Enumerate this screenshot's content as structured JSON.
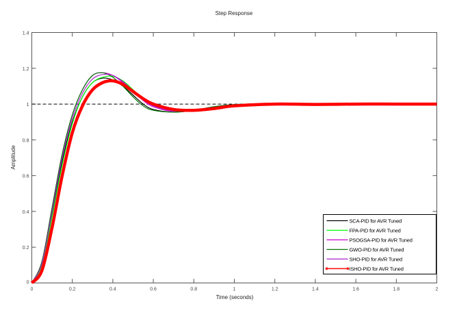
{
  "chart_data": {
    "type": "line",
    "title": "Step Response",
    "xlabel": "Time (seconds)",
    "ylabel": "Amplitude",
    "xlim": [
      0,
      2
    ],
    "ylim": [
      0,
      1.4
    ],
    "xticks": [
      "0",
      "0.2",
      "0.4",
      "0.6",
      "0.8",
      "1",
      "1.2",
      "1.4",
      "1.6",
      "1.8",
      "2"
    ],
    "yticks": [
      "0",
      "0.2",
      "0.4",
      "0.6",
      "0.8",
      "1",
      "1.2",
      "1.4"
    ],
    "grid": false,
    "legend_position": "bottom-right",
    "reference_line": {
      "y": 1,
      "style": "dashed",
      "color": "#000000"
    },
    "x": [
      0,
      0.05,
      0.1,
      0.15,
      0.2,
      0.25,
      0.3,
      0.35,
      0.4,
      0.45,
      0.5,
      0.55,
      0.6,
      0.7,
      0.8,
      0.9,
      1.0,
      1.2,
      1.4,
      1.6,
      1.8,
      2.0
    ],
    "series": [
      {
        "name": "SCA-PID for AVR Tuned",
        "color": "#000000",
        "values": [
          0,
          0.11,
          0.39,
          0.68,
          0.9,
          1.04,
          1.12,
          1.145,
          1.135,
          1.1,
          1.05,
          1.0,
          0.97,
          0.955,
          0.965,
          0.985,
          0.997,
          1.002,
          1.0,
          1.0,
          1.0,
          1.0
        ]
      },
      {
        "name": "FPA-PID for AVR Tuned",
        "color": "#00ff00",
        "values": [
          0,
          0.1,
          0.37,
          0.66,
          0.89,
          1.04,
          1.12,
          1.15,
          1.155,
          1.13,
          1.08,
          1.03,
          0.995,
          0.965,
          0.965,
          0.98,
          0.995,
          1.002,
          1.0,
          1.0,
          1.0,
          1.0
        ]
      },
      {
        "name": "PSOGSA-PID for AVR Tuned",
        "color": "#cc00cc",
        "values": [
          0,
          0.12,
          0.42,
          0.72,
          0.94,
          1.08,
          1.16,
          1.175,
          1.16,
          1.12,
          1.07,
          1.02,
          0.985,
          0.958,
          0.965,
          0.983,
          0.996,
          1.002,
          1.0,
          1.0,
          1.0,
          1.0
        ]
      },
      {
        "name": "GWO-PID for AVR Tuned",
        "color": "#007700",
        "values": [
          0,
          0.12,
          0.42,
          0.72,
          0.94,
          1.08,
          1.16,
          1.175,
          1.15,
          1.1,
          1.04,
          0.99,
          0.965,
          0.955,
          0.965,
          0.985,
          0.997,
          1.003,
          1.0,
          1.0,
          1.0,
          1.0
        ]
      },
      {
        "name": "SHO-PID for AVR Tuned",
        "color": "#aa22cc",
        "values": [
          0,
          0.11,
          0.4,
          0.7,
          0.92,
          1.06,
          1.14,
          1.165,
          1.16,
          1.125,
          1.075,
          1.03,
          0.99,
          0.962,
          0.965,
          0.98,
          0.995,
          1.002,
          1.0,
          1.0,
          1.0,
          1.0
        ]
      },
      {
        "name": "ISHO-PID for AVR Tuned",
        "color": "#ff0000",
        "values": [
          0,
          0.07,
          0.31,
          0.6,
          0.84,
          0.99,
          1.08,
          1.12,
          1.13,
          1.11,
          1.07,
          1.03,
          1.0,
          0.97,
          0.965,
          0.975,
          0.99,
          1.0,
          0.998,
          1.0,
          1.0,
          1.0
        ]
      }
    ]
  }
}
